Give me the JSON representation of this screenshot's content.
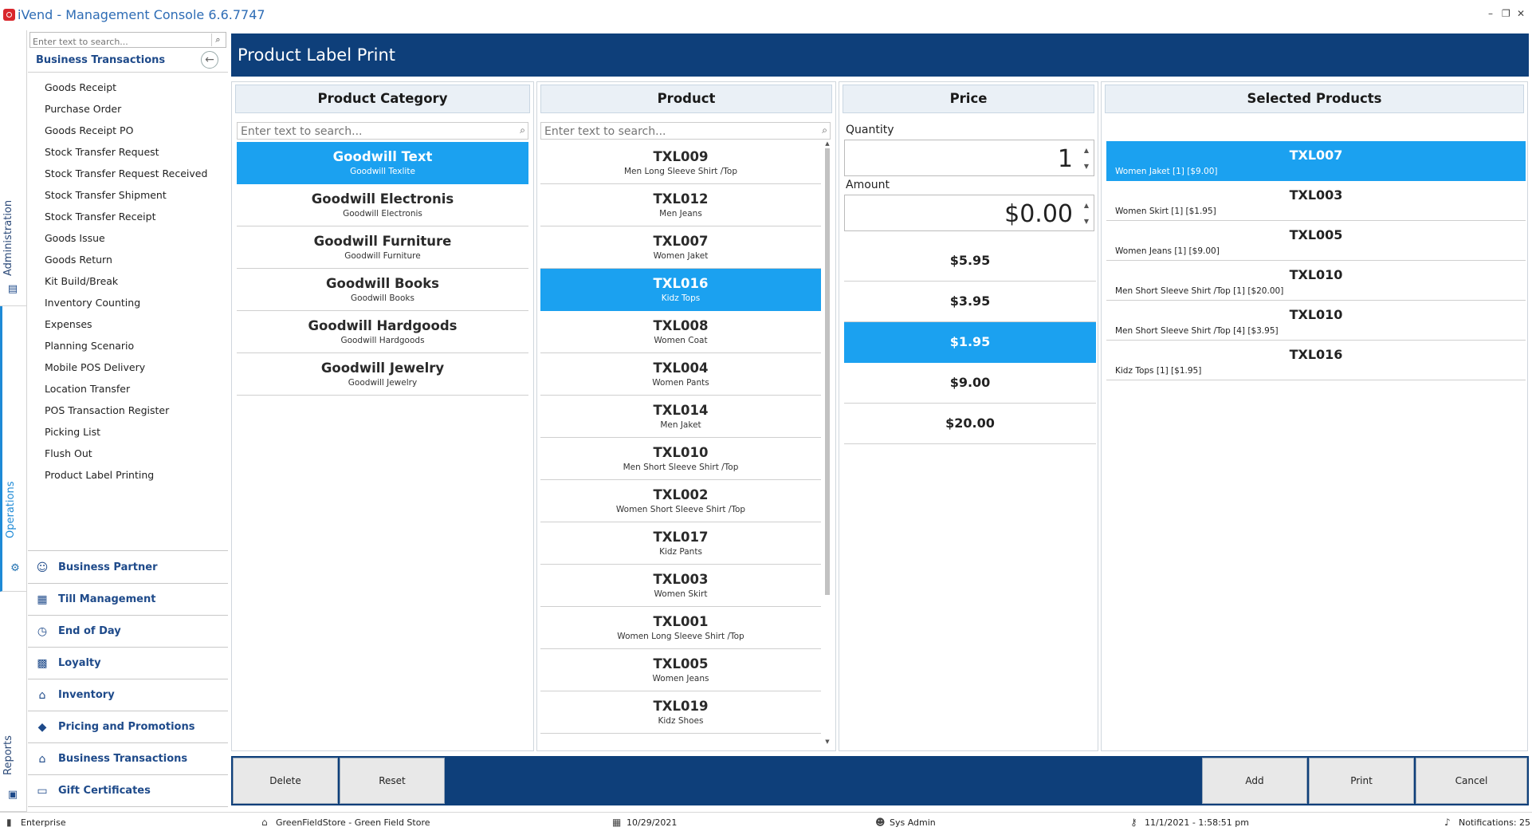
{
  "window": {
    "title": "iVend - Management Console  6.6.7747",
    "minimize": "–",
    "restore": "❐",
    "close": "✕"
  },
  "vertical_tabs": {
    "administration": "Administration",
    "operations": "Operations",
    "reports": "Reports"
  },
  "nav": {
    "search_placeholder": "Enter text to search...",
    "section_title": "Business Transactions",
    "items": [
      "Goods Receipt",
      "Purchase Order",
      "Goods Receipt PO",
      "Stock Transfer Request",
      "Stock Transfer Request Received",
      "Stock Transfer Shipment",
      "Stock Transfer Receipt",
      "Goods Issue",
      "Goods Return",
      "Kit Build/Break",
      "Inventory Counting",
      "Expenses",
      "Planning Scenario",
      "Mobile POS Delivery",
      "Location Transfer",
      "POS Transaction Register",
      "Picking List",
      "Flush Out",
      "Product Label Printing"
    ],
    "groups": [
      {
        "label": "Business Partner",
        "icon": "business-partner-icon"
      },
      {
        "label": "Till Management",
        "icon": "till-icon"
      },
      {
        "label": "End of Day",
        "icon": "clock-icon"
      },
      {
        "label": "Loyalty",
        "icon": "gift-icon"
      },
      {
        "label": "Inventory",
        "icon": "warehouse-icon"
      },
      {
        "label": "Pricing and Promotions",
        "icon": "tag-icon"
      },
      {
        "label": "Business Transactions",
        "icon": "transactions-icon"
      },
      {
        "label": "Gift Certificates",
        "icon": "certificate-icon"
      }
    ]
  },
  "page": {
    "title": "Product Label Print"
  },
  "category_panel": {
    "header": "Product Category",
    "search_placeholder": "Enter text to search...",
    "items": [
      {
        "name": "Goodwill Text",
        "sub": "Goodwill Texlite",
        "selected": true
      },
      {
        "name": "Goodwill Electronis",
        "sub": "Goodwill Electronis",
        "selected": false
      },
      {
        "name": "Goodwill Furniture",
        "sub": "Goodwill Furniture",
        "selected": false
      },
      {
        "name": "Goodwill Books",
        "sub": "Goodwill Books",
        "selected": false
      },
      {
        "name": "Goodwill Hardgoods",
        "sub": "Goodwill Hardgoods",
        "selected": false
      },
      {
        "name": "Goodwill Jewelry",
        "sub": "Goodwill Jewelry",
        "selected": false
      }
    ]
  },
  "product_panel": {
    "header": "Product",
    "search_placeholder": "Enter text to search...",
    "items": [
      {
        "code": "TXL009",
        "desc": "Men Long Sleeve Shirt /Top",
        "selected": false
      },
      {
        "code": "TXL012",
        "desc": "Men Jeans",
        "selected": false
      },
      {
        "code": "TXL007",
        "desc": "Women  Jaket",
        "selected": false
      },
      {
        "code": "TXL016",
        "desc": "Kidz Tops",
        "selected": true
      },
      {
        "code": "TXL008",
        "desc": "Women Coat",
        "selected": false
      },
      {
        "code": "TXL004",
        "desc": "Women Pants",
        "selected": false
      },
      {
        "code": "TXL014",
        "desc": "Men Jaket",
        "selected": false
      },
      {
        "code": "TXL010",
        "desc": "Men Short Sleeve Shirt /Top",
        "selected": false
      },
      {
        "code": "TXL002",
        "desc": "Women Short Sleeve Shirt /Top",
        "selected": false
      },
      {
        "code": "TXL017",
        "desc": "Kidz Pants",
        "selected": false
      },
      {
        "code": "TXL003",
        "desc": "Women Skirt",
        "selected": false
      },
      {
        "code": "TXL001",
        "desc": "Women Long Sleeve Shirt /Top",
        "selected": false
      },
      {
        "code": "TXL005",
        "desc": "Women Jeans",
        "selected": false
      },
      {
        "code": "TXL019",
        "desc": "Kidz Shoes",
        "selected": false
      }
    ]
  },
  "price_panel": {
    "header": "Price",
    "quantity_label": "Quantity",
    "quantity_value": "1",
    "amount_label": "Amount",
    "amount_value": "$0.00",
    "spin_up": "▲",
    "spin_down": "▼",
    "prices": [
      {
        "label": "$5.95",
        "selected": false
      },
      {
        "label": "$3.95",
        "selected": false
      },
      {
        "label": "$1.95",
        "selected": true
      },
      {
        "label": "$9.00",
        "selected": false
      },
      {
        "label": "$20.00",
        "selected": false
      }
    ]
  },
  "selected_panel": {
    "header": "Selected Products",
    "items": [
      {
        "code": "TXL007",
        "detail": "Women  Jaket [1] [$9.00]",
        "selected": true
      },
      {
        "code": "TXL003",
        "detail": "Women Skirt [1] [$1.95]",
        "selected": false
      },
      {
        "code": "TXL005",
        "detail": "Women Jeans [1] [$9.00]",
        "selected": false
      },
      {
        "code": "TXL010",
        "detail": "Men Short Sleeve Shirt /Top [1] [$20.00]",
        "selected": false
      },
      {
        "code": "TXL010",
        "detail": "Men Short Sleeve Shirt /Top [4] [$3.95]",
        "selected": false
      },
      {
        "code": "TXL016",
        "detail": "Kidz Tops [1] [$1.95]",
        "selected": false
      }
    ]
  },
  "actions": {
    "delete": "Delete",
    "reset": "Reset",
    "add": "Add",
    "print": "Print",
    "cancel": "Cancel"
  },
  "status": {
    "edition": "Enterprise",
    "store": "GreenFieldStore - Green Field Store",
    "date": "10/29/2021",
    "user": "Sys Admin",
    "datetime": "11/1/2021 - 1:58:51 pm",
    "notifications": "Notifications: 25"
  },
  "colors": {
    "header_band": "#0e3f7a",
    "selection": "#1ba1f0",
    "nav_text": "#1e4a8a",
    "title_text": "#2d6cb5"
  }
}
